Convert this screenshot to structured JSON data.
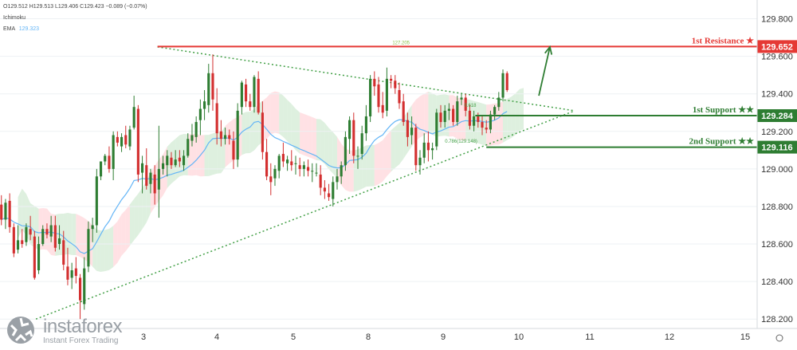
{
  "header": {
    "ohlc": "O129.512 H129.513 L129.406 C129.423 −0.089 (−0.07%)",
    "indicator": "Ichimoku",
    "ema_label": "EMA",
    "ema_value": "129.323"
  },
  "brand": {
    "name": "instaforex",
    "tagline": "Instant Forex Trading"
  },
  "colors": {
    "up": "#2e7d32",
    "down": "#d32f2f",
    "resistance": "#e53935",
    "support": "#2e7d32",
    "ema": "#64b5f6",
    "cloud_green": "#c8e6c9",
    "cloud_red": "#ffcdd2",
    "trendline": "#43a047"
  },
  "chart_data": {
    "type": "candlestick",
    "yaxis": {
      "range": [
        128.15,
        129.9
      ],
      "ticks": [
        "129.800",
        "129.600",
        "129.400",
        "129.200",
        "129.000",
        "128.800",
        "128.600",
        "128.400",
        "128.200"
      ]
    },
    "xaxis": {
      "ticks": [
        "3",
        "4",
        "5",
        "8",
        "9",
        "10",
        "11",
        "12",
        "15"
      ]
    },
    "levels": [
      {
        "name": "1st Resistance ★",
        "value": 129.652,
        "label": "129.652",
        "kind": "resistance"
      },
      {
        "name": "1st Support ★★",
        "value": 129.284,
        "label": "129.284",
        "kind": "support"
      },
      {
        "name": "2nd Support ★★",
        "value": 129.116,
        "label": "129.116",
        "kind": "support"
      }
    ],
    "annotations": [
      "127.205",
      "0.618",
      "0.786(129.148)"
    ],
    "trend_upper": [
      [
        4.65,
        129.65
      ],
      [
        12.2,
        129.31
      ]
    ],
    "trend_lower": [
      [
        2.45,
        128.2
      ],
      [
        12.2,
        129.31
      ]
    ],
    "arrow": {
      "from": [
        11.55,
        129.39
      ],
      "to": [
        11.75,
        129.65
      ]
    },
    "ohlc": [
      [
        1.825,
        128.81,
        128.86,
        128.7,
        128.73
      ],
      [
        1.9,
        128.73,
        128.84,
        128.68,
        128.82
      ],
      [
        1.975,
        128.83,
        128.87,
        128.66,
        128.69
      ],
      [
        2.05,
        128.69,
        128.71,
        128.53,
        128.55
      ],
      [
        2.125,
        128.57,
        128.7,
        128.55,
        128.62
      ],
      [
        2.2,
        128.62,
        128.68,
        128.58,
        128.6
      ],
      [
        2.275,
        128.61,
        128.71,
        128.59,
        128.69
      ],
      [
        2.35,
        128.68,
        128.75,
        128.62,
        128.65
      ],
      [
        2.425,
        128.64,
        128.67,
        128.41,
        128.42
      ],
      [
        2.5,
        128.46,
        128.64,
        128.44,
        128.6
      ],
      [
        2.575,
        128.6,
        128.7,
        128.59,
        128.68
      ],
      [
        2.65,
        128.68,
        128.71,
        128.63,
        128.65
      ],
      [
        2.725,
        128.64,
        128.75,
        128.61,
        128.7
      ],
      [
        2.8,
        128.7,
        128.75,
        128.56,
        128.58
      ],
      [
        2.875,
        128.6,
        128.7,
        128.57,
        128.63
      ],
      [
        2.95,
        128.62,
        128.67,
        128.46,
        128.49
      ],
      [
        3.025,
        128.48,
        128.58,
        128.38,
        128.41
      ],
      [
        3.1,
        128.42,
        128.5,
        128.36,
        128.46
      ],
      [
        3.175,
        128.47,
        128.53,
        128.39,
        128.43
      ],
      [
        3.25,
        128.42,
        128.44,
        128.2,
        128.3
      ],
      [
        3.325,
        128.28,
        128.53,
        128.25,
        128.47
      ],
      [
        3.4,
        128.48,
        128.72,
        128.45,
        128.68
      ],
      [
        3.475,
        128.68,
        128.74,
        128.61,
        128.7
      ],
      [
        3.55,
        128.7,
        129.0,
        128.66,
        128.96
      ],
      [
        3.625,
        128.96,
        129.04,
        128.94,
        129.04
      ],
      [
        3.7,
        129.04,
        129.08,
        129.02,
        129.07
      ],
      [
        3.775,
        129.07,
        129.12,
        128.98,
        129.0
      ],
      [
        3.85,
        129.0,
        129.2,
        128.94,
        129.18
      ],
      [
        3.925,
        129.17,
        129.2,
        129.12,
        129.14
      ],
      [
        4.0,
        129.12,
        129.19,
        129.09,
        129.17
      ],
      [
        4.075,
        129.18,
        129.23,
        129.11,
        129.13
      ],
      [
        4.15,
        129.12,
        129.23,
        129.1,
        129.21
      ],
      [
        4.225,
        129.22,
        129.39,
        129.21,
        129.33
      ],
      [
        4.3,
        129.32,
        129.34,
        128.93,
        128.97
      ],
      [
        4.375,
        128.98,
        129.07,
        128.87,
        129.03
      ],
      [
        4.45,
        129.02,
        129.11,
        128.89,
        128.91
      ],
      [
        4.525,
        128.92,
        129.0,
        128.87,
        128.98
      ],
      [
        4.6,
        128.97,
        129.02,
        128.81,
        128.87
      ],
      [
        4.675,
        128.89,
        129.23,
        128.74,
        129.0
      ],
      [
        4.75,
        129.0,
        129.07,
        128.97,
        129.03
      ],
      [
        4.825,
        129.02,
        129.1,
        128.96,
        129.07
      ],
      [
        4.9,
        129.06,
        129.09,
        129.0,
        129.02
      ],
      [
        4.975,
        129.02,
        129.1,
        129.01,
        129.05
      ],
      [
        5.05,
        129.06,
        129.1,
        129.01,
        129.04
      ],
      [
        5.125,
        129.02,
        129.1,
        128.99,
        129.07
      ],
      [
        5.2,
        129.07,
        129.19,
        129.06,
        129.16
      ],
      [
        5.275,
        129.15,
        129.24,
        129.12,
        129.18
      ],
      [
        5.35,
        129.17,
        129.28,
        129.14,
        129.25
      ],
      [
        5.425,
        129.26,
        129.37,
        129.18,
        129.32
      ],
      [
        5.5,
        129.32,
        129.42,
        129.26,
        129.36
      ],
      [
        5.575,
        129.34,
        129.56,
        129.3,
        129.51
      ],
      [
        5.65,
        129.51,
        129.61,
        129.31,
        129.37
      ],
      [
        5.725,
        129.35,
        129.43,
        129.13,
        129.19
      ],
      [
        5.8,
        129.2,
        129.26,
        129.12,
        129.16
      ],
      [
        5.875,
        129.16,
        129.22,
        129.13,
        129.18
      ],
      [
        5.95,
        129.18,
        129.21,
        129.13,
        129.16
      ],
      [
        6.025,
        129.15,
        129.2,
        129.0,
        129.05
      ],
      [
        6.1,
        129.05,
        129.35,
        129.01,
        129.31
      ],
      [
        6.175,
        129.33,
        129.47,
        129.29,
        129.46
      ],
      [
        6.25,
        129.45,
        129.48,
        129.33,
        129.36
      ],
      [
        6.325,
        129.36,
        129.4,
        129.31,
        129.33
      ],
      [
        6.4,
        129.33,
        129.5,
        129.3,
        129.49
      ],
      [
        6.475,
        129.48,
        129.52,
        129.29,
        129.3
      ],
      [
        6.55,
        129.3,
        129.36,
        129.05,
        129.09
      ],
      [
        6.625,
        129.09,
        129.16,
        128.94,
        128.96
      ],
      [
        6.7,
        128.96,
        129.03,
        128.86,
        128.93
      ],
      [
        6.775,
        128.95,
        129.02,
        128.91,
        129.0
      ],
      [
        6.85,
        128.99,
        129.08,
        128.95,
        129.07
      ],
      [
        6.925,
        129.08,
        129.14,
        129.01,
        129.04
      ],
      [
        7.0,
        129.03,
        129.07,
        128.99,
        129.05
      ],
      [
        7.075,
        129.04,
        129.1,
        128.99,
        129.02
      ],
      [
        7.15,
        129.03,
        129.07,
        128.97,
        129.03
      ],
      [
        7.225,
        129.02,
        129.06,
        128.96,
        129.0
      ],
      [
        7.3,
        129.0,
        129.04,
        128.96,
        129.02
      ],
      [
        7.375,
        129.01,
        129.05,
        128.96,
        128.99
      ],
      [
        7.45,
        128.99,
        129.03,
        128.93,
        128.99
      ],
      [
        7.525,
        128.98,
        129.03,
        128.96,
        128.98
      ],
      [
        7.6,
        128.97,
        129.02,
        128.86,
        128.9
      ],
      [
        7.675,
        128.9,
        128.94,
        128.84,
        128.88
      ],
      [
        7.75,
        128.87,
        128.92,
        128.83,
        128.85
      ],
      [
        7.825,
        128.84,
        128.96,
        128.8,
        128.93
      ],
      [
        7.9,
        128.93,
        129.0,
        128.89,
        128.96
      ],
      [
        7.975,
        128.96,
        129.04,
        128.92,
        129.02
      ],
      [
        8.05,
        129.02,
        129.2,
        128.99,
        129.17
      ],
      [
        8.125,
        129.16,
        129.28,
        129.08,
        129.26
      ],
      [
        8.2,
        129.26,
        129.3,
        129.03,
        129.07
      ],
      [
        8.275,
        129.07,
        129.12,
        129.0,
        129.07
      ],
      [
        8.35,
        129.08,
        129.23,
        129.05,
        129.19
      ],
      [
        8.425,
        129.19,
        129.34,
        129.15,
        129.28
      ],
      [
        8.5,
        129.28,
        129.5,
        129.25,
        129.48
      ],
      [
        8.575,
        129.48,
        129.52,
        129.39,
        129.44
      ],
      [
        8.65,
        129.45,
        129.49,
        129.3,
        129.33
      ],
      [
        8.725,
        129.34,
        129.41,
        129.27,
        129.3
      ],
      [
        8.8,
        129.31,
        129.54,
        129.28,
        129.48
      ],
      [
        8.875,
        129.48,
        129.5,
        129.43,
        129.47
      ],
      [
        8.95,
        129.47,
        129.5,
        129.4,
        129.43
      ],
      [
        9.025,
        129.42,
        129.46,
        129.32,
        129.35
      ],
      [
        9.1,
        129.36,
        129.4,
        129.23,
        129.25
      ],
      [
        9.175,
        129.26,
        129.3,
        129.12,
        129.17
      ],
      [
        9.25,
        129.18,
        129.28,
        129.13,
        129.22
      ],
      [
        9.325,
        129.22,
        129.24,
        128.99,
        129.02
      ],
      [
        9.4,
        129.02,
        129.1,
        128.97,
        129.06
      ],
      [
        9.475,
        129.06,
        129.19,
        129.03,
        129.14
      ],
      [
        9.55,
        129.14,
        129.2,
        129.04,
        129.1
      ],
      [
        9.625,
        129.1,
        129.14,
        129.05,
        129.11
      ],
      [
        9.7,
        129.12,
        129.32,
        129.1,
        129.3
      ],
      [
        9.775,
        129.3,
        129.34,
        129.22,
        129.25
      ],
      [
        9.85,
        129.25,
        129.34,
        129.22,
        129.31
      ],
      [
        9.925,
        129.31,
        129.35,
        129.26,
        129.32
      ],
      [
        10.0,
        129.32,
        129.34,
        129.23,
        129.25
      ],
      [
        10.075,
        129.25,
        129.39,
        129.23,
        129.36
      ],
      [
        10.15,
        129.37,
        129.4,
        129.34,
        129.38
      ],
      [
        10.225,
        129.38,
        129.4,
        129.28,
        129.31
      ],
      [
        10.3,
        129.31,
        129.34,
        129.21,
        129.23
      ],
      [
        10.375,
        129.23,
        129.31,
        129.2,
        129.28
      ],
      [
        10.45,
        129.28,
        129.3,
        129.22,
        129.25
      ],
      [
        10.525,
        129.25,
        129.28,
        129.18,
        129.22
      ],
      [
        10.6,
        129.22,
        129.26,
        129.19,
        129.21
      ],
      [
        10.675,
        129.21,
        129.31,
        129.19,
        129.29
      ],
      [
        10.75,
        129.29,
        129.34,
        129.26,
        129.33
      ],
      [
        10.825,
        129.33,
        129.41,
        129.31,
        129.38
      ],
      [
        10.9,
        129.38,
        129.53,
        129.36,
        129.51
      ],
      [
        10.975,
        129.51,
        129.52,
        129.41,
        129.42
      ]
    ]
  }
}
